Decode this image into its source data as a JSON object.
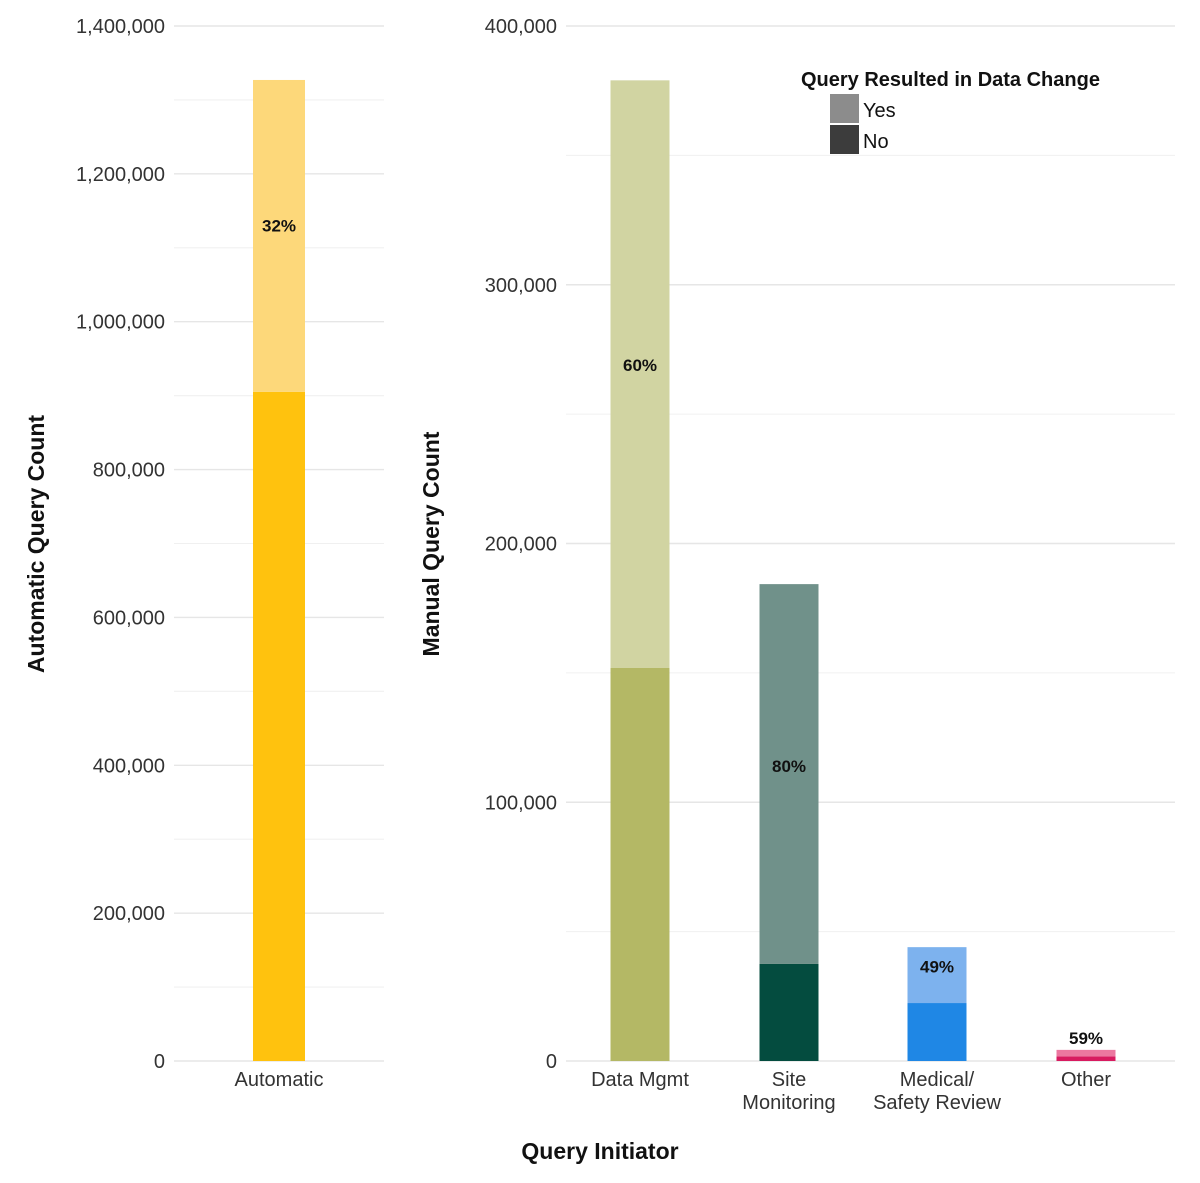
{
  "chart_data": [
    {
      "type": "bar",
      "stacked": true,
      "panel": "automatic",
      "title": "",
      "xlabel": "",
      "ylabel": "Automatic Query Count",
      "ylim": [
        0,
        1400000
      ],
      "yticks": [
        0,
        200000,
        400000,
        600000,
        800000,
        1000000,
        1200000,
        1400000
      ],
      "ytick_labels": [
        "0",
        "200,000",
        "400,000",
        "600,000",
        "800,000",
        "1,000,000",
        "1,200,000",
        "1,400,000"
      ],
      "grid": true,
      "categories": [
        "Automatic"
      ],
      "series": [
        {
          "name": "No",
          "values": [
            905000
          ]
        },
        {
          "name": "Yes",
          "values": [
            422000
          ]
        }
      ],
      "colors": {
        "Automatic": {
          "No": "#FFC20E",
          "Yes": "#FDD87A"
        }
      },
      "annotations": [
        {
          "category": "Automatic",
          "text": "32%",
          "at_value": 1130000
        }
      ]
    },
    {
      "type": "bar",
      "stacked": true,
      "panel": "manual",
      "title": "",
      "xlabel": "Query Initiator",
      "ylabel": "Manual Query Count",
      "ylim": [
        0,
        400000
      ],
      "yticks": [
        0,
        100000,
        200000,
        300000,
        400000
      ],
      "ytick_labels": [
        "0",
        "100,000",
        "200,000",
        "300,000",
        "400,000"
      ],
      "grid": true,
      "categories": [
        "Data Mgmt",
        "Site\nMonitoring",
        "Medical/\nSafety Review",
        "Other"
      ],
      "series": [
        {
          "name": "No",
          "values": [
            152000,
            37500,
            22400,
            1800
          ]
        },
        {
          "name": "Yes",
          "values": [
            227000,
            146800,
            21600,
            2500
          ]
        }
      ],
      "colors": {
        "Data Mgmt": {
          "No": "#B4B865",
          "Yes": "#D1D4A2"
        },
        "Site\nMonitoring": {
          "No": "#044C3F",
          "Yes": "#70918A"
        },
        "Medical/\nSafety Review": {
          "No": "#1F87E5",
          "Yes": "#7DB2EE"
        },
        "Other": {
          "No": "#D81B60",
          "Yes": "#EC77A0"
        }
      },
      "annotations": [
        {
          "category": "Data Mgmt",
          "text": "60%",
          "at_value": 269000
        },
        {
          "category": "Site\nMonitoring",
          "text": "80%",
          "at_value": 114000
        },
        {
          "category": "Medical/\nSafety Review",
          "text": "49%",
          "at_value": 36500
        },
        {
          "category": "Other",
          "text": "59%",
          "above": true
        }
      ],
      "legend": {
        "title": "Query Resulted in Data Change",
        "position": "top-right",
        "items": [
          {
            "label": "Yes",
            "color": "#8C8C8C"
          },
          {
            "label": "No",
            "color": "#3C3C3C"
          }
        ]
      }
    }
  ]
}
